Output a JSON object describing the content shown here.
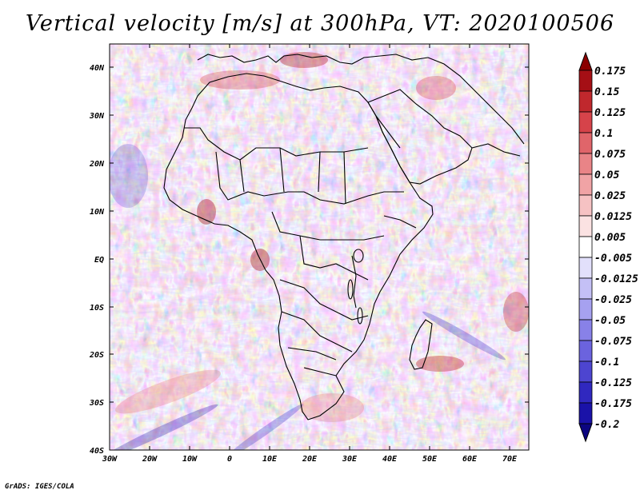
{
  "title": "Vertical velocity [m/s] at 300hPa, VT: 2020100506",
  "footer": "GrADS: IGES/COLA",
  "axes": {
    "x_ticks": [
      "30W",
      "20W",
      "10W",
      "0",
      "10E",
      "20E",
      "30E",
      "40E",
      "50E",
      "60E",
      "70E"
    ],
    "y_ticks": [
      "40N",
      "30N",
      "20N",
      "10N",
      "EQ",
      "10S",
      "20S",
      "30S",
      "40S"
    ]
  },
  "colorbar": {
    "labels": [
      "0.175",
      "0.15",
      "0.125",
      "0.1",
      "0.075",
      "0.05",
      "0.025",
      "0.0125",
      "0.005",
      "-0.005",
      "-0.0125",
      "-0.025",
      "-0.05",
      "-0.075",
      "-0.1",
      "-0.125",
      "-0.175",
      "-0.2"
    ],
    "colors": [
      "#8b0000",
      "#a50f15",
      "#c0282d",
      "#d6434a",
      "#e0656a",
      "#e98487",
      "#f0a3a5",
      "#f6c2c3",
      "#fbe2e2",
      "#ffffff",
      "#e2e0fb",
      "#c4c0f6",
      "#a6a1f0",
      "#8881e8",
      "#6b63de",
      "#4d45d0",
      "#3028bf",
      "#1a12a8",
      "#0c0580"
    ]
  },
  "chart_data": {
    "type": "heatmap",
    "title": "Vertical velocity [m/s] at 300hPa, VT: 2020100506",
    "variable": "Vertical velocity",
    "units": "m/s",
    "level": "300hPa",
    "valid_time": "2020100506",
    "lon_range": [
      "30W",
      "75E"
    ],
    "lat_range": [
      "40S",
      "45N"
    ]
  }
}
